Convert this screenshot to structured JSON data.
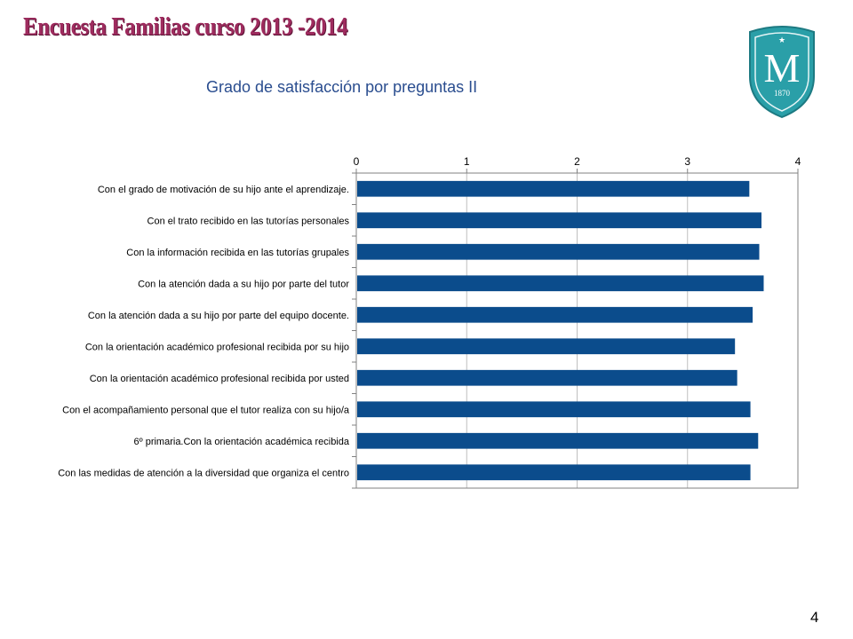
{
  "header": {
    "title": "Encuesta Familias curso 2013 -2014"
  },
  "logo": {
    "letter": "M",
    "year": "1870",
    "color": "#2a9fa8"
  },
  "colors": {
    "bar": "#0b4c8c",
    "title": "#2a4d8f",
    "header": "#9e2b5e",
    "grid": "#bfbfbf"
  },
  "chart_data": {
    "type": "bar",
    "orientation": "horizontal",
    "title": "Grado de satisfacción por preguntas II",
    "xlim": [
      0,
      4
    ],
    "xticks": [
      "0",
      "1",
      "2",
      "3",
      "4"
    ],
    "grid": true,
    "categories": [
      "Con el grado de motivación de su hijo ante el aprendizaje.",
      "Con el trato recibido en las tutorías personales",
      "Con la información recibida en las tutorías grupales",
      "Con la atención dada a su hijo por parte del tutor",
      "Con la atención dada a su hijo por parte del equipo docente.",
      "Con  la orientación académico profesional recibida por su hijo",
      "Con  la orientación académico profesional recibida por usted",
      "Con  el acompañamiento personal que el tutor realiza con su hijo/a",
      "6º primaria.Con la orientación académica recibida",
      "Con las medidas de atención a la diversidad que organiza el centro"
    ],
    "values": [
      3.56,
      3.67,
      3.65,
      3.69,
      3.59,
      3.43,
      3.45,
      3.57,
      3.64,
      3.57
    ]
  },
  "page": {
    "number": "4"
  }
}
